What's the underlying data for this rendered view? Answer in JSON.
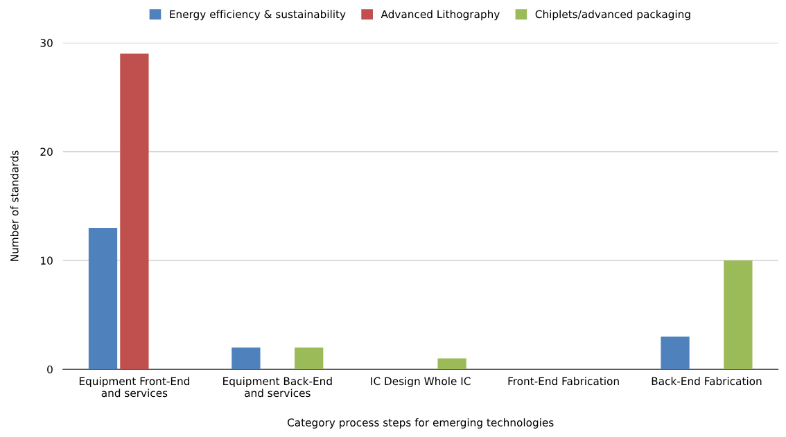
{
  "chart_data": {
    "type": "bar",
    "xlabel": "Category process steps for emerging technologies",
    "ylabel": "Number of standards",
    "categories": [
      "Equipment Front-End\nand services",
      "Equipment Back-End\nand services",
      "IC Design Whole IC",
      "Front-End Fabrication",
      "Back-End Fabrication"
    ],
    "series": [
      {
        "name": "Energy efficiency & sustainability",
        "color": "#4f81bd",
        "values": [
          13,
          2,
          0,
          0,
          3
        ]
      },
      {
        "name": "Advanced Lithography",
        "color": "#c0504d",
        "values": [
          29,
          0,
          0,
          0,
          0
        ]
      },
      {
        "name": "Chiplets/advanced packaging",
        "color": "#9bbb59",
        "values": [
          0,
          2,
          1,
          0,
          10
        ]
      }
    ],
    "ylim": [
      0,
      30
    ],
    "yticks": [
      0,
      10,
      20,
      30
    ],
    "grid": "y",
    "legend": "top"
  }
}
